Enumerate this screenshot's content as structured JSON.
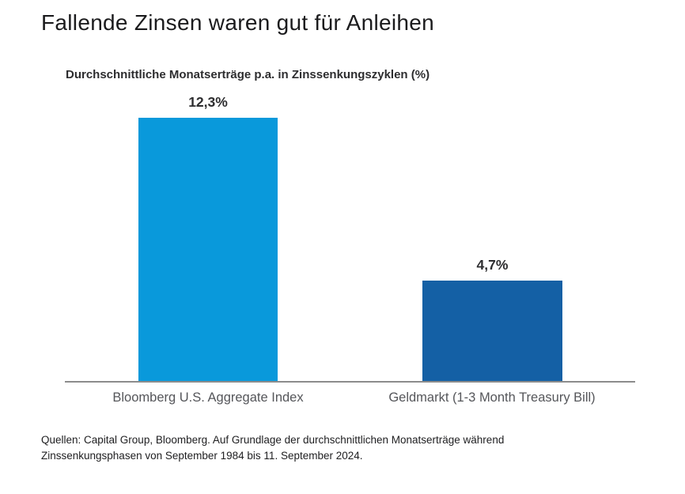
{
  "chart_data": {
    "type": "bar",
    "title": "Fallende Zinsen waren gut für Anleihen",
    "subtitle": "Durchschnittliche Monatserträge p.a. in Zinssenkungszyklen (%)",
    "categories": [
      "Bloomberg U.S. Aggregate Index",
      "Geldmarkt (1-3 Month Treasury Bill)"
    ],
    "values": [
      12.3,
      4.7
    ],
    "value_labels": [
      "12,3%",
      "4,7%"
    ],
    "bar_colors": [
      "#0999db",
      "#1460a5"
    ],
    "ylim": [
      0,
      13
    ],
    "grid": false,
    "legend": false,
    "xlabel": "",
    "ylabel": "",
    "axis_line_color": "#8c8c8c"
  },
  "footer": {
    "lines": [
      "Quellen: Capital Group, Bloomberg. Auf Grundlage der durchschnittlichen Monatserträge während",
      "Zinssenkungsphasen von September 1984 bis 11. September 2024."
    ]
  }
}
